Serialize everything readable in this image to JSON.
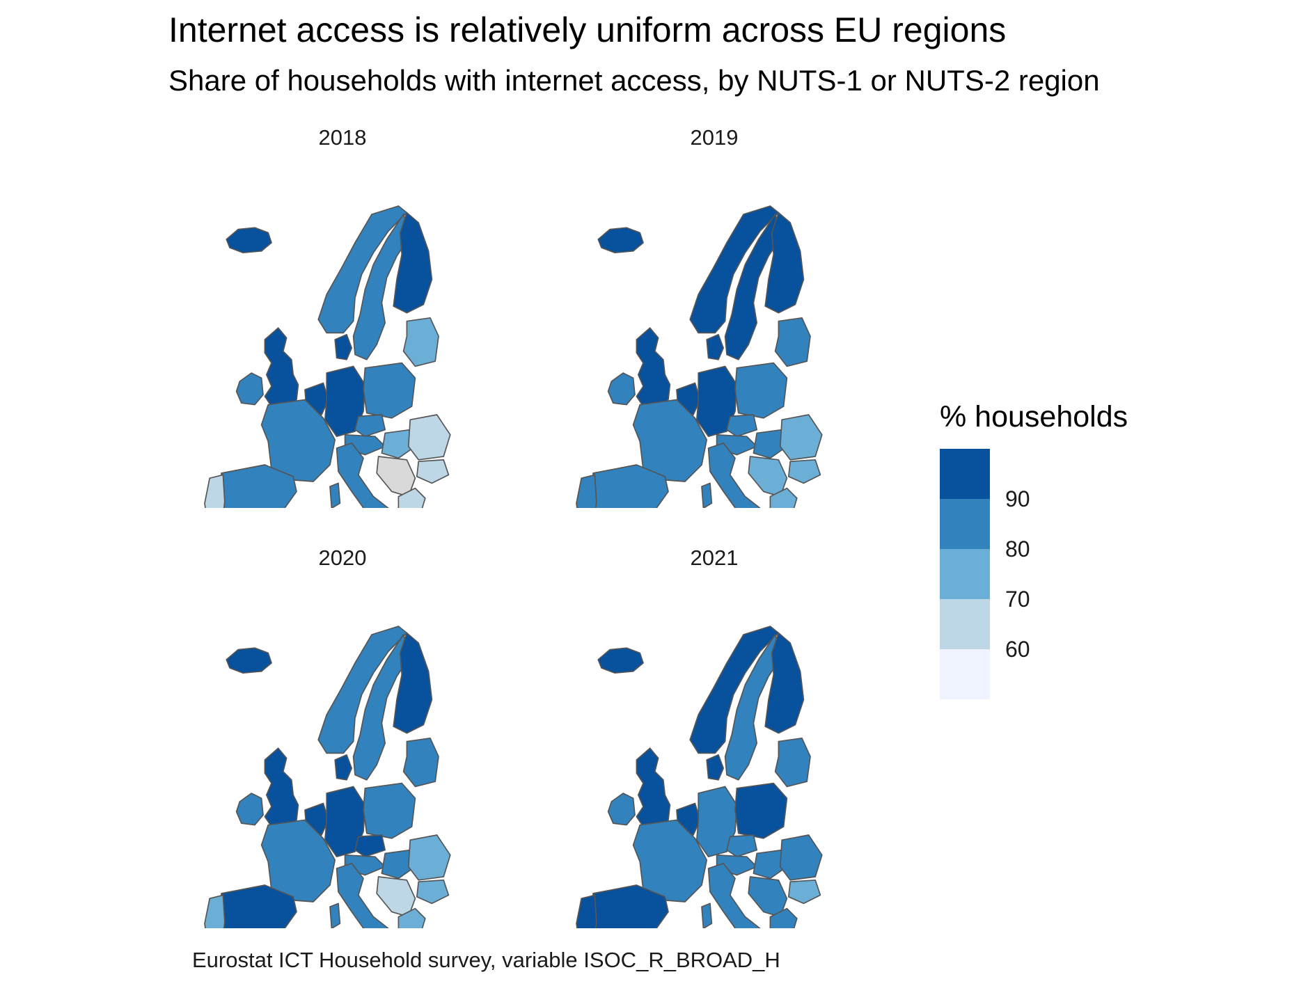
{
  "title": "Internet access is relatively uniform across EU regions",
  "subtitle": "Share of households with internet access, by NUTS-1 or NUTS-2 region",
  "caption": "Eurostat ICT Household survey, variable ISOC_R_BROAD_H",
  "colors": {
    "c90": "#08519c",
    "c80": "#3182bd",
    "c70": "#6baed6",
    "c60": "#bdd7e7",
    "clow": "#eff3ff",
    "missing": "#d9d9d9",
    "border": "#555555"
  },
  "legend": {
    "title": "% households",
    "ticks": [
      "90",
      "80",
      "70",
      "60"
    ],
    "bins": [
      "c90",
      "c80",
      "c70",
      "c60",
      "clow"
    ]
  },
  "panels": [
    {
      "year": "2018",
      "fills": {
        "iceland": "c90",
        "ireland": "c80",
        "uk": "c90",
        "norway": "c80",
        "sweden": "c80",
        "finland": "c90",
        "baltics": "c70",
        "denmark": "c90",
        "benelux": "c90",
        "germany": "c90",
        "poland": "c80",
        "czechia": "c80",
        "austria": "c80",
        "hungary": "c70",
        "romania": "c60",
        "bulgaria": "c60",
        "balkans": "missing",
        "greece": "c60",
        "italy": "c80",
        "france": "c80",
        "iberia": "c80",
        "portugal": "c60",
        "sardinia": "c80",
        "sicily": "c70",
        "cyprus": "c80"
      }
    },
    {
      "year": "2019",
      "fills": {
        "iceland": "c90",
        "ireland": "c80",
        "uk": "c90",
        "norway": "c90",
        "sweden": "c90",
        "finland": "c90",
        "baltics": "c80",
        "denmark": "c90",
        "benelux": "c90",
        "germany": "c90",
        "poland": "c80",
        "czechia": "c80",
        "austria": "c80",
        "hungary": "c80",
        "romania": "c70",
        "bulgaria": "c70",
        "balkans": "c70",
        "greece": "c70",
        "italy": "c80",
        "france": "c80",
        "iberia": "c80",
        "portugal": "c80",
        "sardinia": "c80",
        "sicily": "c70",
        "cyprus": "c80"
      }
    },
    {
      "year": "2020",
      "fills": {
        "iceland": "c90",
        "ireland": "c80",
        "uk": "c90",
        "norway": "c80",
        "sweden": "c80",
        "finland": "c90",
        "baltics": "c80",
        "denmark": "c90",
        "benelux": "c90",
        "germany": "c90",
        "poland": "c80",
        "czechia": "c90",
        "austria": "c80",
        "hungary": "c80",
        "romania": "c70",
        "bulgaria": "c70",
        "balkans": "c60",
        "greece": "c70",
        "italy": "c80",
        "france": "c80",
        "iberia": "c90",
        "portugal": "c70",
        "sardinia": "c80",
        "sicily": "c80",
        "cyprus": "c80"
      }
    },
    {
      "year": "2021",
      "fills": {
        "iceland": "c90",
        "ireland": "c80",
        "uk": "c90",
        "norway": "c90",
        "sweden": "c80",
        "finland": "c90",
        "baltics": "c80",
        "denmark": "c90",
        "benelux": "c90",
        "germany": "c80",
        "poland": "c90",
        "czechia": "c80",
        "austria": "c80",
        "hungary": "c80",
        "romania": "c80",
        "bulgaria": "c70",
        "balkans": "c80",
        "greece": "c80",
        "italy": "c80",
        "france": "c80",
        "iberia": "c90",
        "portugal": "c90",
        "sardinia": "c80",
        "sicily": "c80",
        "cyprus": "c90"
      }
    }
  ]
}
